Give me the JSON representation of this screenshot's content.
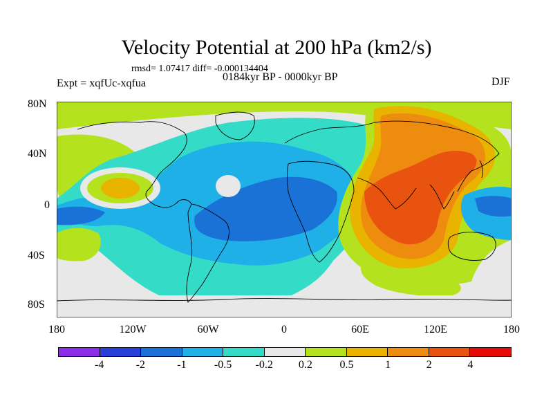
{
  "header": {
    "title": "Velocity Potential at 200 hPa (km2/s)",
    "stats": "rmsd= 1.07417 diff= -0.000134404",
    "experiment": "Expt = xqfUc-xqfua",
    "period": "0184kyr BP - 0000kyr BP",
    "season": "DJF"
  },
  "map": {
    "y_tick_labels": [
      "80N",
      "40N",
      "0",
      "40S",
      "80S"
    ],
    "x_tick_labels": [
      "180",
      "120W",
      "60W",
      "0",
      "60E",
      "120E",
      "180"
    ]
  },
  "colorbar": {
    "colors": [
      "#8c2ee6",
      "#2a3fd8",
      "#1a72d6",
      "#1fb0e8",
      "#34dcc8",
      "#e8e8e8",
      "#b4e21e",
      "#e8b400",
      "#ee8c10",
      "#e85410",
      "#e60a0a"
    ],
    "labels": [
      "-4",
      "-2",
      "-1",
      "-0.5",
      "-0.2",
      "0.2",
      "0.5",
      "1",
      "2",
      "4"
    ]
  }
}
